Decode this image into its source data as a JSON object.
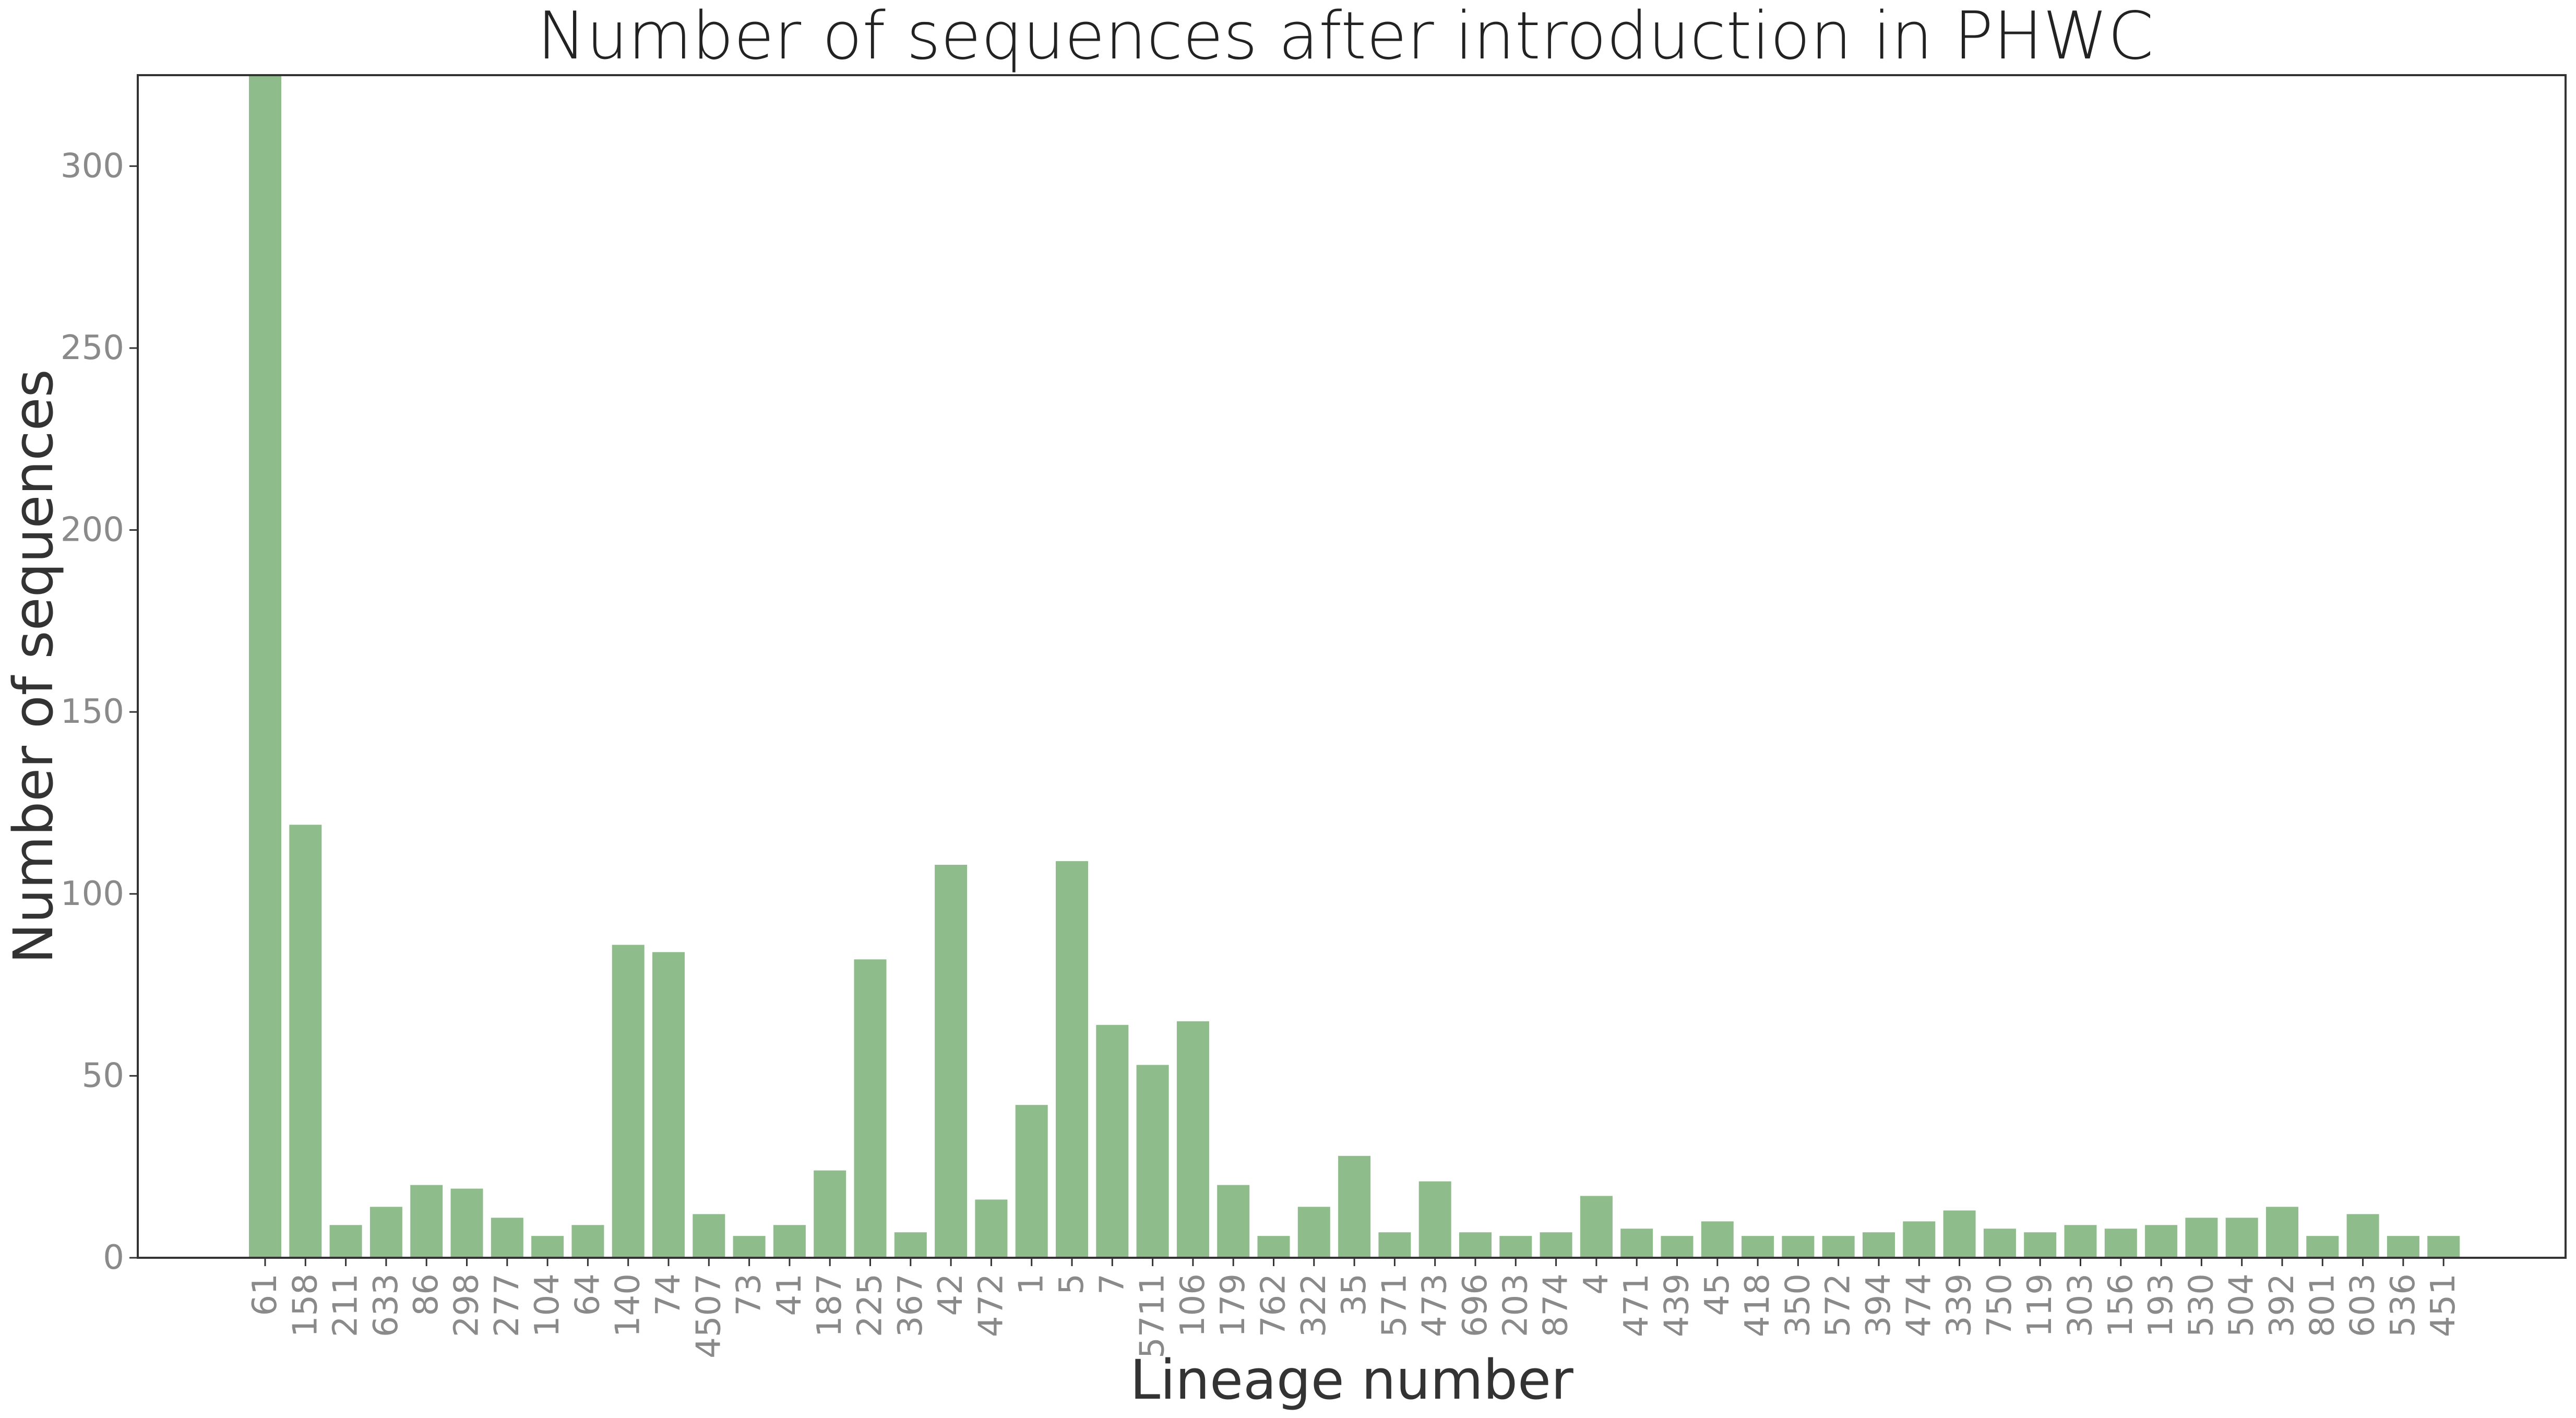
{
  "chart_data": {
    "type": "bar",
    "title": "Number of sequences after introduction in PHWC",
    "xlabel": "Lineage number",
    "ylabel": "Number of sequences",
    "ylim": [
      0,
      325
    ],
    "yticks": [
      0,
      50,
      100,
      150,
      200,
      250,
      300
    ],
    "grid": false,
    "bar_color": "#8fbc8b",
    "categories": [
      "61",
      "158",
      "211",
      "633",
      "86",
      "298",
      "277",
      "104",
      "64",
      "140",
      "74",
      "4507",
      "73",
      "41",
      "187",
      "225",
      "367",
      "42",
      "472",
      "1",
      "5",
      "7",
      "5711",
      "106",
      "179",
      "762",
      "322",
      "35",
      "571",
      "473",
      "696",
      "203",
      "874",
      "4",
      "471",
      "439",
      "45",
      "418",
      "350",
      "572",
      "394",
      "474",
      "339",
      "750",
      "119",
      "303",
      "156",
      "193",
      "530",
      "504",
      "392",
      "801",
      "603",
      "536",
      "451"
    ],
    "values": [
      330,
      119,
      9,
      14,
      20,
      19,
      11,
      6,
      9,
      86,
      84,
      12,
      6,
      9,
      24,
      82,
      7,
      108,
      16,
      42,
      109,
      64,
      53,
      65,
      20,
      6,
      14,
      28,
      7,
      21,
      7,
      6,
      7,
      17,
      8,
      6,
      10,
      6,
      6,
      6,
      7,
      10,
      13,
      8,
      7,
      9,
      8,
      9,
      11,
      11,
      14,
      6,
      12,
      6,
      6
    ]
  }
}
